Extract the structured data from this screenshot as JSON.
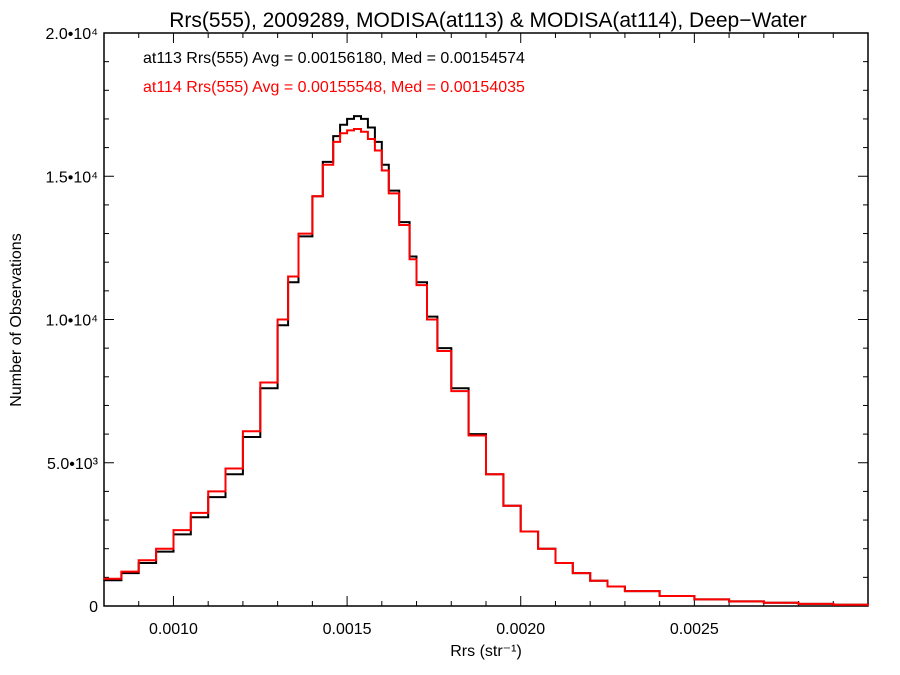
{
  "chart_data": {
    "type": "line",
    "title": "Rrs(555), 2009289, MODISA(at113) & MODISA(at114), Deep−Water",
    "xlabel": "Rrs (str⁻¹)",
    "ylabel": "Number of Observations",
    "xlim": [
      0.0008,
      0.003
    ],
    "ylim": [
      0,
      20000
    ],
    "grid": false,
    "x_ticks": [
      "0.0010",
      "0.0015",
      "0.0020",
      "0.0025"
    ],
    "y_ticks": [
      "0",
      "5.0•10³",
      "1.0•10⁴",
      "1.5•10⁴",
      "2.0•10⁴"
    ],
    "annotations": [
      "at113 Rrs(555) Avg = 0.00156180, Med = 0.00154574",
      "at114 Rrs(555) Avg = 0.00155548, Med = 0.00154035"
    ],
    "series": [
      {
        "color": "#000000",
        "x": [
          0.0008,
          0.00085,
          0.0009,
          0.00095,
          0.001,
          0.00105,
          0.0011,
          0.00115,
          0.0012,
          0.00125,
          0.0013,
          0.00133,
          0.00136,
          0.0014,
          0.00143,
          0.00146,
          0.00148,
          0.0015,
          0.00152,
          0.00154,
          0.00156,
          0.00158,
          0.0016,
          0.00162,
          0.00165,
          0.00168,
          0.0017,
          0.00173,
          0.00176,
          0.0018,
          0.00185,
          0.0019,
          0.00195,
          0.002,
          0.00205,
          0.0021,
          0.00215,
          0.0022,
          0.00225,
          0.0023,
          0.0024,
          0.0025,
          0.0026,
          0.0027,
          0.0028,
          0.0029,
          0.003
        ],
        "y": [
          900,
          1150,
          1500,
          1900,
          2500,
          3100,
          3800,
          4600,
          5900,
          7600,
          9800,
          11300,
          12900,
          14300,
          15500,
          16400,
          16800,
          17000,
          17100,
          17000,
          16700,
          16200,
          15400,
          14500,
          13400,
          12200,
          11300,
          10100,
          9000,
          7600,
          6000,
          4600,
          3500,
          2600,
          2000,
          1500,
          1150,
          880,
          680,
          520,
          350,
          230,
          160,
          110,
          75,
          45,
          25
        ]
      },
      {
        "color": "#ff0000",
        "x": [
          0.0008,
          0.00085,
          0.0009,
          0.00095,
          0.001,
          0.00105,
          0.0011,
          0.00115,
          0.0012,
          0.00125,
          0.0013,
          0.00133,
          0.00136,
          0.0014,
          0.00143,
          0.00146,
          0.00148,
          0.0015,
          0.00152,
          0.00154,
          0.00156,
          0.00158,
          0.0016,
          0.00162,
          0.00165,
          0.00168,
          0.0017,
          0.00173,
          0.00176,
          0.0018,
          0.00185,
          0.0019,
          0.00195,
          0.002,
          0.00205,
          0.0021,
          0.00215,
          0.0022,
          0.00225,
          0.0023,
          0.0024,
          0.0025,
          0.0026,
          0.0027,
          0.0028,
          0.0029,
          0.003
        ],
        "y": [
          950,
          1200,
          1600,
          2000,
          2650,
          3250,
          4000,
          4800,
          6100,
          7800,
          10000,
          11500,
          13000,
          14300,
          15400,
          16200,
          16500,
          16600,
          16650,
          16550,
          16300,
          15900,
          15200,
          14400,
          13300,
          12100,
          11200,
          10000,
          8900,
          7500,
          5950,
          4600,
          3500,
          2600,
          2000,
          1500,
          1150,
          880,
          680,
          520,
          350,
          230,
          160,
          110,
          75,
          45,
          25
        ]
      }
    ]
  }
}
